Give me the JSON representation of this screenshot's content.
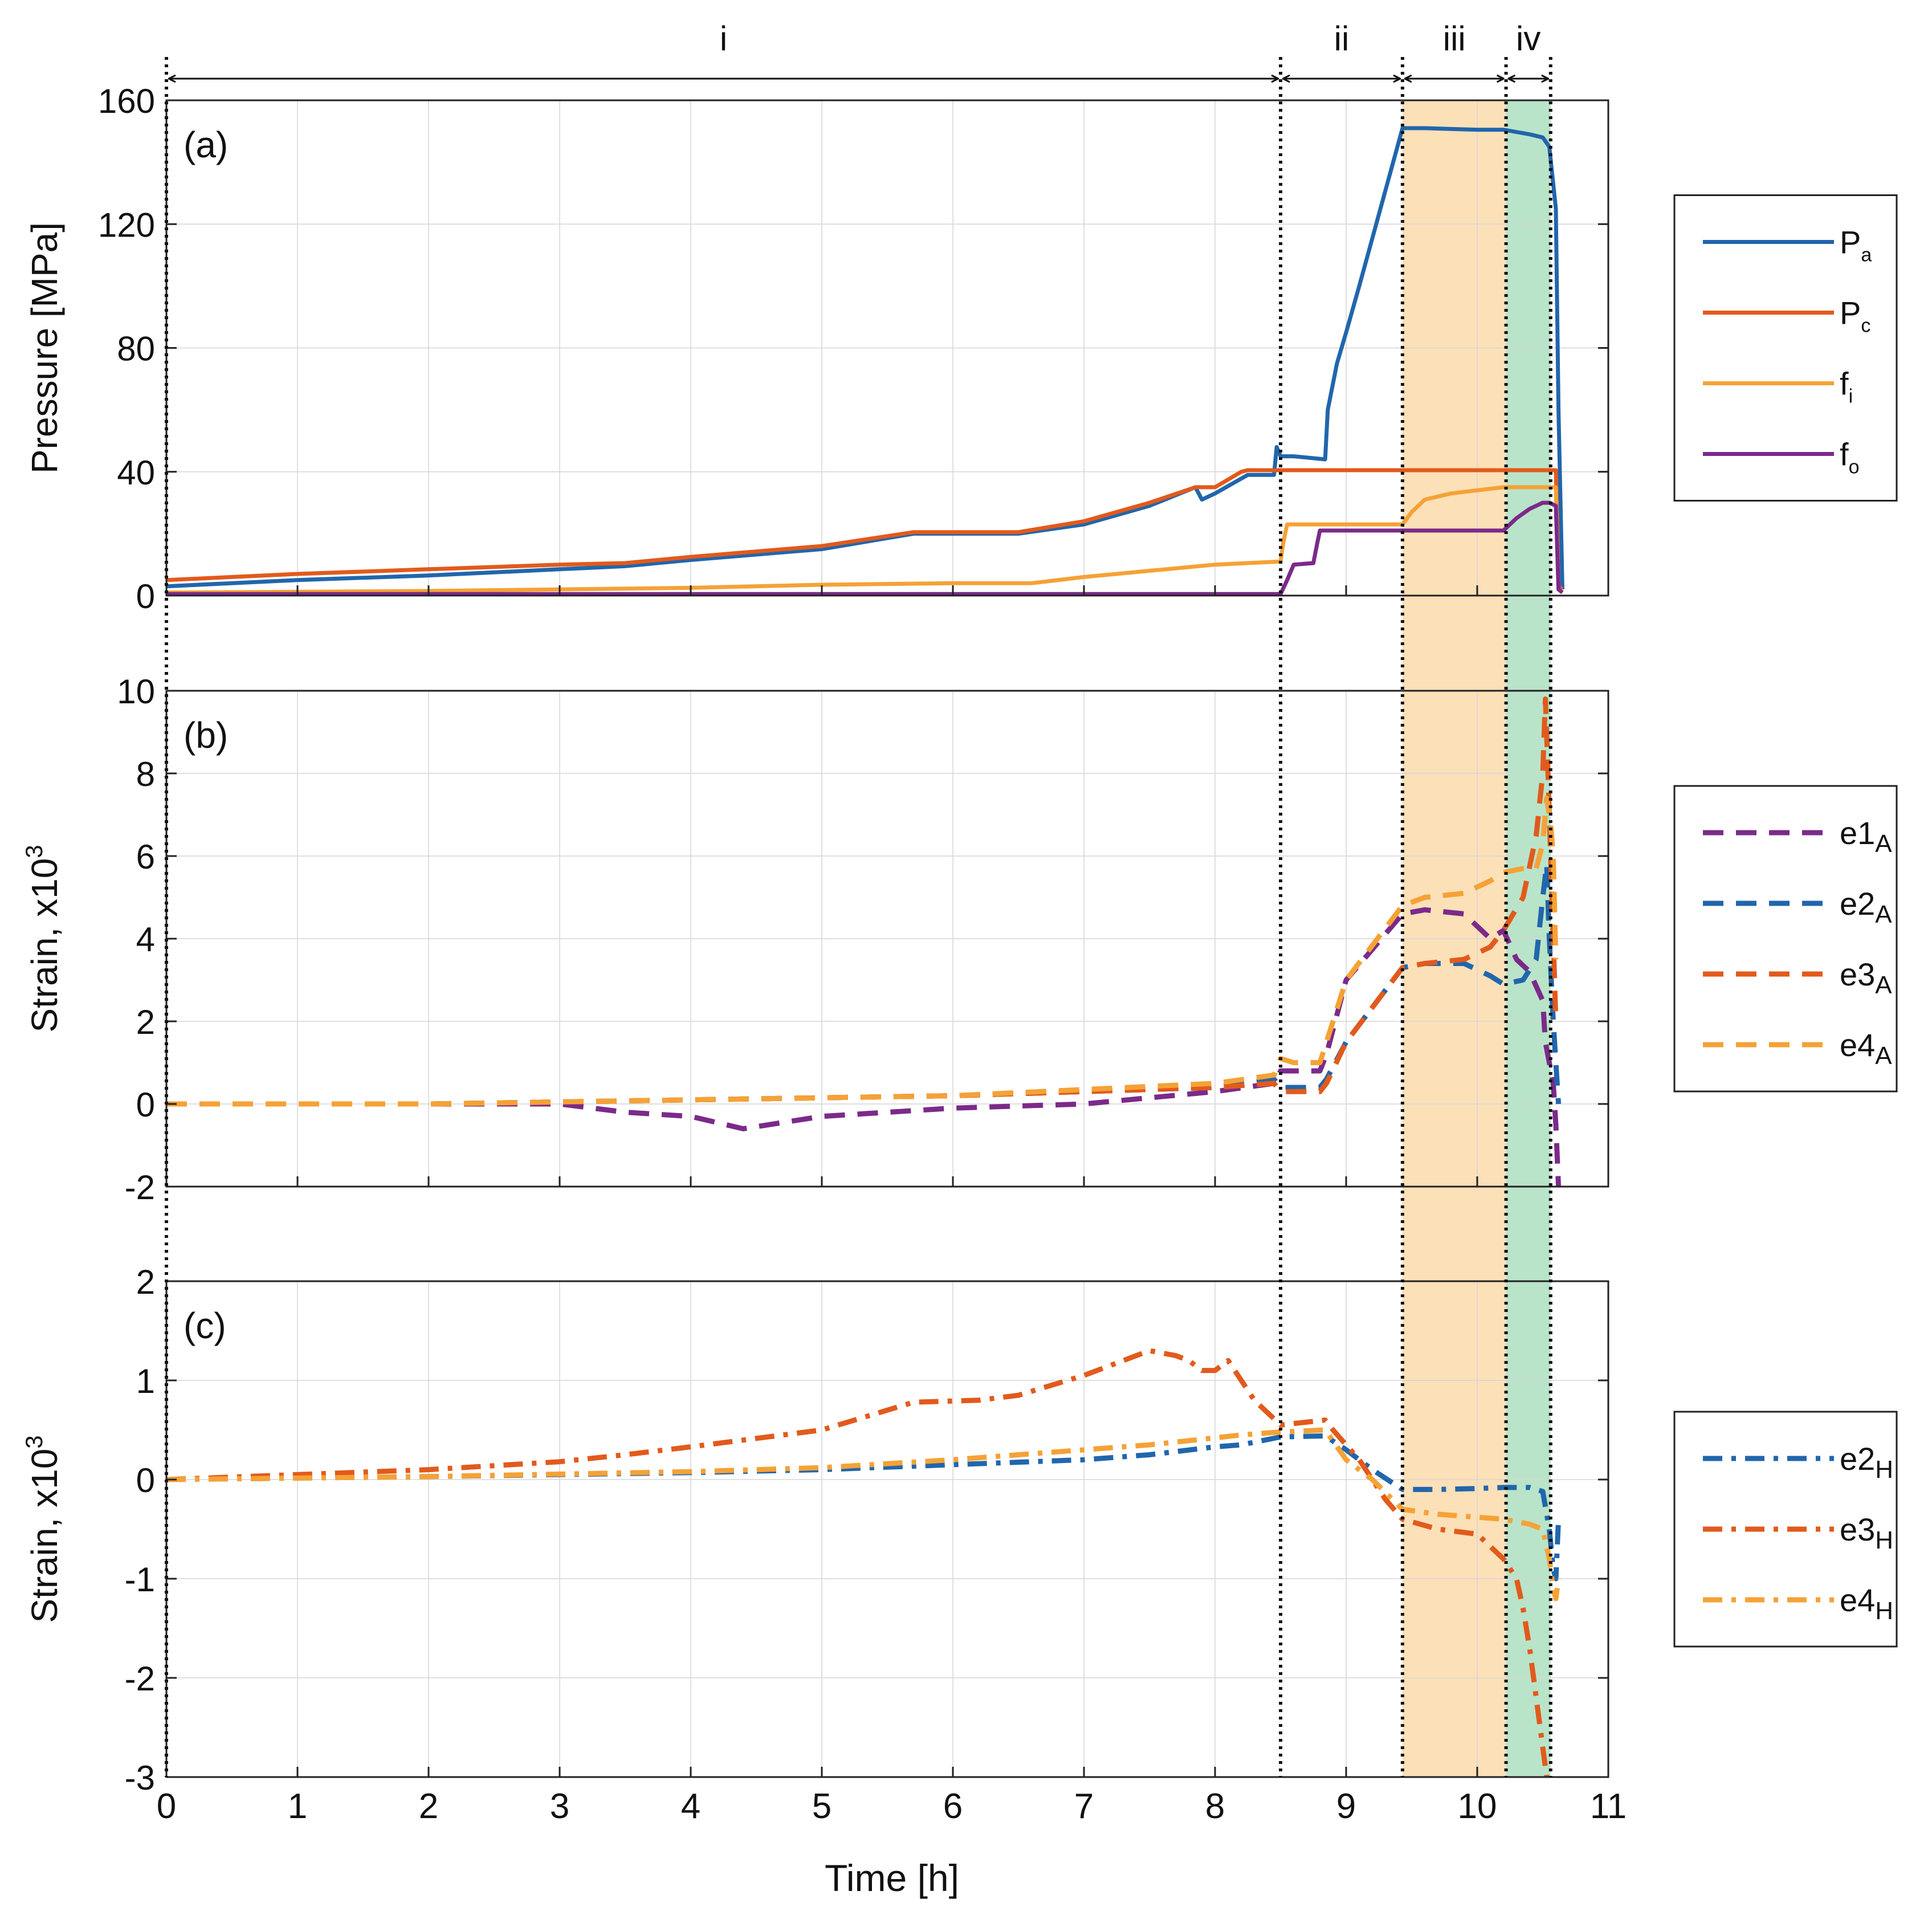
{
  "figure": {
    "x_axis_label": "Time [h]",
    "x_ticks": [
      "0",
      "1",
      "2",
      "3",
      "4",
      "5",
      "6",
      "7",
      "8",
      "9",
      "10",
      "11"
    ],
    "phases": [
      {
        "label": "i",
        "start_h": 0,
        "end_h": 8.5
      },
      {
        "label": "ii",
        "start_h": 8.5,
        "end_h": 9.43
      },
      {
        "label": "iii",
        "start_h": 9.43,
        "end_h": 10.22
      },
      {
        "label": "iv",
        "start_h": 10.22,
        "end_h": 10.56
      }
    ],
    "shading": {
      "iii": "#fce0b8",
      "iv": "#b9e4c9"
    }
  },
  "chart_data": [
    {
      "type": "line",
      "id": "a",
      "panel_label": "(a)",
      "ylabel": "Pressure [MPa]",
      "xlim": [
        0,
        11
      ],
      "ylim": [
        0,
        160
      ],
      "y_ticks": [
        0,
        40,
        80,
        120,
        160
      ],
      "y_tick_labels": [
        "0",
        "40",
        "80",
        "120",
        "160"
      ],
      "grid": true,
      "legend_position": "right",
      "series": [
        {
          "name": "P",
          "sub": "a",
          "color": "#2166ac",
          "dash": "solid",
          "x": [
            0,
            1,
            2,
            3,
            3.5,
            4,
            5,
            5.7,
            6.5,
            7,
            7.5,
            7.85,
            7.9,
            8,
            8.25,
            8.45,
            8.47,
            8.5,
            8.6,
            8.84,
            8.86,
            8.93,
            9.0,
            9.1,
            9.43,
            9.6,
            10.0,
            10.2,
            10.4,
            10.5,
            10.55,
            10.6,
            10.62,
            10.65
          ],
          "y": [
            3,
            5,
            6.5,
            8.5,
            9.5,
            11.5,
            15,
            20,
            20,
            23,
            29,
            35,
            31,
            33,
            39,
            39,
            48,
            45,
            45,
            44,
            60,
            75,
            85,
            100,
            151,
            151,
            150.5,
            150.5,
            149,
            148,
            145,
            125,
            60,
            2
          ]
        },
        {
          "name": "P",
          "sub": "c",
          "color": "#e25a1c",
          "dash": "solid",
          "x": [
            0,
            1,
            2,
            3,
            3.5,
            4,
            5,
            5.7,
            6.5,
            7,
            7.5,
            7.85,
            8,
            8.2,
            8.25,
            8.5,
            9,
            10,
            10.5,
            10.6,
            10.62,
            10.65
          ],
          "y": [
            5,
            7,
            8.5,
            10,
            10.5,
            12.5,
            16,
            20.5,
            20.5,
            24,
            30,
            35,
            35,
            40,
            40.5,
            40.5,
            40.5,
            40.5,
            40.5,
            40.5,
            3,
            2
          ]
        },
        {
          "name": "f",
          "sub": "i",
          "color": "#f5a236",
          "dash": "solid",
          "x": [
            0,
            2,
            4,
            5,
            6,
            6.6,
            7,
            7.5,
            8,
            8.5,
            8.52,
            8.55,
            9,
            9.43,
            9.5,
            9.6,
            9.8,
            10,
            10.2,
            10.5,
            10.6,
            10.62,
            10.65
          ],
          "y": [
            1,
            1.5,
            2.5,
            3.5,
            4,
            4,
            6,
            8,
            10,
            11,
            17,
            23,
            23,
            23,
            27,
            31,
            33,
            34,
            35,
            35,
            35,
            2,
            1
          ]
        },
        {
          "name": "f",
          "sub": "o",
          "color": "#7b2a8a",
          "dash": "solid",
          "x": [
            0,
            2,
            4,
            6,
            8,
            8.5,
            8.55,
            8.6,
            8.75,
            8.78,
            8.8,
            9,
            9.43,
            10,
            10.2,
            10.3,
            10.4,
            10.5,
            10.55,
            10.6,
            10.62,
            10.65
          ],
          "y": [
            0.5,
            0.5,
            0.5,
            0.5,
            0.5,
            0.5,
            5,
            10,
            10.5,
            17,
            21,
            21,
            21,
            21,
            21,
            25,
            28,
            30,
            30,
            29,
            2,
            1
          ]
        }
      ]
    },
    {
      "type": "line",
      "id": "b",
      "panel_label": "(b)",
      "ylabel": "Strain, x10",
      "ylabel_sup": "3",
      "xlim": [
        0,
        11
      ],
      "ylim": [
        -2,
        10
      ],
      "y_ticks": [
        -2,
        0,
        2,
        4,
        6,
        8,
        10
      ],
      "y_tick_labels": [
        "-2",
        "0",
        "2",
        "4",
        "6",
        "8",
        "10"
      ],
      "grid": true,
      "legend_position": "right",
      "series": [
        {
          "name": "e1",
          "sub": "A",
          "color": "#7b2a8a",
          "dash": "dashed",
          "x": [
            0,
            1,
            2,
            3,
            3.5,
            4,
            4.4,
            5,
            6,
            7,
            8,
            8.45,
            8.5,
            8.8,
            8.85,
            9,
            9.43,
            9.6,
            9.9,
            10.1,
            10.2,
            10.3,
            10.4,
            10.5,
            10.52,
            10.55,
            10.58,
            10.6,
            10.62
          ],
          "y": [
            0,
            0,
            0,
            0,
            -0.2,
            -0.3,
            -0.6,
            -0.3,
            -0.1,
            0,
            0.3,
            0.5,
            0.8,
            0.8,
            1.2,
            3.0,
            4.6,
            4.7,
            4.6,
            4.0,
            4.2,
            3.5,
            3.2,
            2.5,
            1.5,
            1.0,
            0.5,
            -0.5,
            -2
          ]
        },
        {
          "name": "e2",
          "sub": "A",
          "color": "#2166ac",
          "dash": "dashed",
          "x": [
            0,
            2,
            4,
            6,
            8,
            8.45,
            8.5,
            8.8,
            8.85,
            9,
            9.43,
            9.6,
            9.9,
            10.1,
            10.2,
            10.35,
            10.45,
            10.5,
            10.53,
            10.55,
            10.58,
            10.6,
            10.62
          ],
          "y": [
            0,
            0,
            0.1,
            0.2,
            0.4,
            0.6,
            0.4,
            0.4,
            0.6,
            1.5,
            3.3,
            3.4,
            3.4,
            3.1,
            2.9,
            3.0,
            3.5,
            5.0,
            5.8,
            4.0,
            2.0,
            1.0,
            0
          ]
        },
        {
          "name": "e3",
          "sub": "A",
          "color": "#e25a1c",
          "dash": "dashed",
          "x": [
            0,
            2,
            4,
            6,
            8,
            8.45,
            8.5,
            8.8,
            8.85,
            9,
            9.43,
            9.6,
            9.9,
            10.1,
            10.2,
            10.35,
            10.45,
            10.5,
            10.52,
            10.54,
            10.56,
            10.58,
            10.6
          ],
          "y": [
            0,
            0,
            0.1,
            0.2,
            0.4,
            0.5,
            0.3,
            0.3,
            0.5,
            1.5,
            3.3,
            3.4,
            3.5,
            3.8,
            4.2,
            5.0,
            6.5,
            8.0,
            9.8,
            8.0,
            6.0,
            4.0,
            2.0
          ]
        },
        {
          "name": "e4",
          "sub": "A",
          "color": "#f5a236",
          "dash": "dashed",
          "x": [
            0,
            2,
            4,
            6,
            8,
            8.45,
            8.5,
            8.6,
            8.8,
            8.85,
            9,
            9.43,
            9.6,
            9.9,
            10.1,
            10.2,
            10.35,
            10.45,
            10.5,
            10.53,
            10.56,
            10.58,
            10.6
          ],
          "y": [
            0,
            0,
            0.1,
            0.2,
            0.5,
            0.7,
            1.1,
            1.0,
            1.0,
            1.5,
            3.0,
            4.8,
            5.0,
            5.1,
            5.4,
            5.6,
            5.7,
            5.7,
            6.3,
            7.4,
            6.8,
            6.0,
            3.5
          ]
        }
      ]
    },
    {
      "type": "line",
      "id": "c",
      "panel_label": "(c)",
      "ylabel": "Strain, x10",
      "ylabel_sup": "3",
      "xlim": [
        0,
        11
      ],
      "ylim": [
        -3,
        2
      ],
      "y_ticks": [
        -3,
        -2,
        -1,
        0,
        1,
        2
      ],
      "y_tick_labels": [
        "-3",
        "-2",
        "-1",
        "0",
        "1",
        "2"
      ],
      "grid": true,
      "legend_position": "right",
      "series": [
        {
          "name": "e2",
          "sub": "H",
          "color": "#2166ac",
          "dash": "dashdot",
          "x": [
            0,
            2,
            4,
            5,
            6,
            7,
            7.5,
            8,
            8.2,
            8.5,
            8.84,
            9,
            9.2,
            9.43,
            9.7,
            10,
            10.2,
            10.4,
            10.5,
            10.55,
            10.58,
            10.6,
            10.62
          ],
          "y": [
            0,
            0.03,
            0.07,
            0.1,
            0.15,
            0.2,
            0.25,
            0.33,
            0.35,
            0.43,
            0.44,
            0.3,
            0.1,
            -0.1,
            -0.1,
            -0.09,
            -0.08,
            -0.08,
            -0.12,
            -0.5,
            -0.9,
            -1.0,
            -0.4
          ]
        },
        {
          "name": "e3",
          "sub": "H",
          "color": "#e25a1c",
          "dash": "dashdot",
          "x": [
            0,
            1,
            2,
            3,
            3.5,
            4,
            5,
            5.7,
            6.2,
            6.5,
            7,
            7.5,
            7.7,
            7.8,
            7.9,
            8.0,
            8.1,
            8.3,
            8.5,
            8.84,
            8.9,
            9.1,
            9.3,
            9.43,
            9.7,
            10,
            10.2,
            10.3,
            10.35,
            10.4,
            10.45,
            10.5,
            10.53
          ],
          "y": [
            0,
            0.05,
            0.1,
            0.18,
            0.25,
            0.33,
            0.5,
            0.78,
            0.8,
            0.85,
            1.05,
            1.3,
            1.25,
            1.2,
            1.1,
            1.1,
            1.2,
            0.8,
            0.55,
            0.6,
            0.5,
            0.2,
            -0.2,
            -0.4,
            -0.5,
            -0.55,
            -0.8,
            -1.0,
            -1.3,
            -1.7,
            -2.2,
            -2.7,
            -3.0
          ]
        },
        {
          "name": "e4",
          "sub": "H",
          "color": "#f5a236",
          "dash": "dashdot",
          "x": [
            0,
            2,
            4,
            5,
            6,
            7,
            7.5,
            8,
            8.2,
            8.5,
            8.84,
            9,
            9.2,
            9.43,
            9.7,
            10,
            10.2,
            10.4,
            10.5,
            10.55,
            10.58,
            10.6,
            10.62
          ],
          "y": [
            0,
            0.03,
            0.08,
            0.12,
            0.2,
            0.3,
            0.35,
            0.42,
            0.45,
            0.48,
            0.5,
            0.2,
            0.0,
            -0.3,
            -0.35,
            -0.38,
            -0.4,
            -0.45,
            -0.5,
            -0.8,
            -1.1,
            -1.2,
            -1.0
          ]
        }
      ]
    }
  ]
}
